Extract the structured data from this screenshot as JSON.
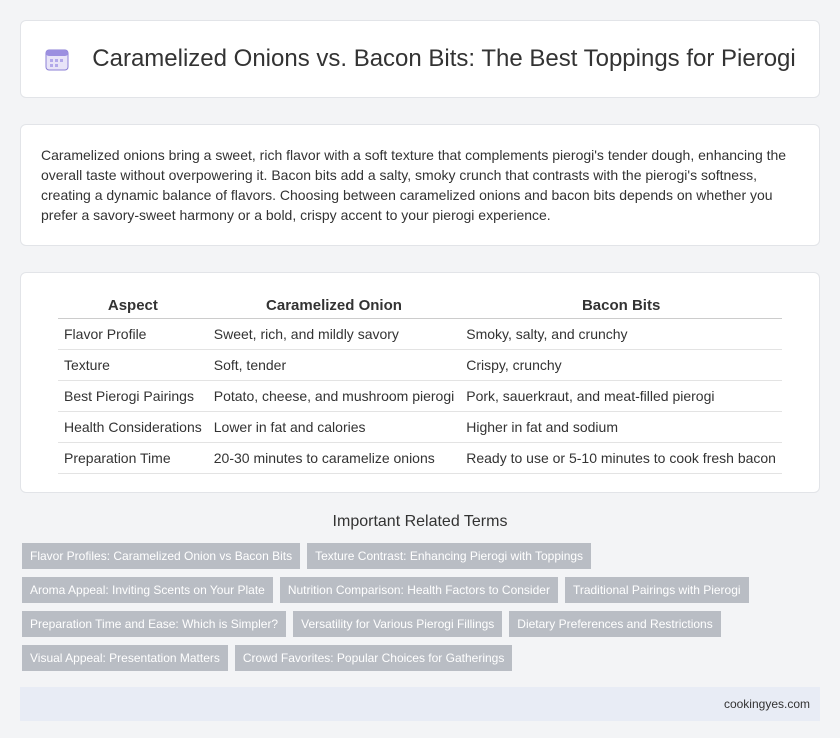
{
  "header": {
    "title": "Caramelized Onions vs. Bacon Bits: The Best Toppings for Pierogi"
  },
  "intro": "Caramelized onions bring a sweet, rich flavor with a soft texture that complements pierogi's tender dough, enhancing the overall taste without overpowering it. Bacon bits add a salty, smoky crunch that contrasts with the pierogi's softness, creating a dynamic balance of flavors. Choosing between caramelized onions and bacon bits depends on whether you prefer a savory-sweet harmony or a bold, crispy accent to your pierogi experience.",
  "table": {
    "headers": [
      "Aspect",
      "Caramelized Onion",
      "Bacon Bits"
    ],
    "rows": [
      [
        "Flavor Profile",
        "Sweet, rich, and mildly savory",
        "Smoky, salty, and crunchy"
      ],
      [
        "Texture",
        "Soft, tender",
        "Crispy, crunchy"
      ],
      [
        "Best Pierogi Pairings",
        "Potato, cheese, and mushroom pierogi",
        "Pork, sauerkraut, and meat-filled pierogi"
      ],
      [
        "Health Considerations",
        "Lower in fat and calories",
        "Higher in fat and sodium"
      ],
      [
        "Preparation Time",
        "20-30 minutes to caramelize onions",
        "Ready to use or 5-10 minutes to cook fresh bacon"
      ]
    ]
  },
  "related": {
    "title": "Important Related Terms",
    "tags": [
      "Flavor Profiles: Caramelized Onion vs Bacon Bits",
      "Texture Contrast: Enhancing Pierogi with Toppings",
      "Aroma Appeal: Inviting Scents on Your Plate",
      "Nutrition Comparison: Health Factors to Consider",
      "Traditional Pairings with Pierogi",
      "Preparation Time and Ease: Which is Simpler?",
      "Versatility for Various Pierogi Fillings",
      "Dietary Preferences and Restrictions",
      "Visual Appeal: Presentation Matters",
      "Crowd Favorites: Popular Choices for Gatherings"
    ]
  },
  "footer": {
    "site": "cookingyes.com"
  }
}
